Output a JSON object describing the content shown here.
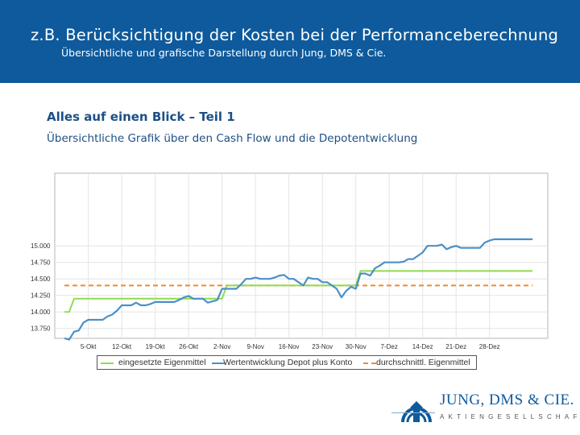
{
  "header": {
    "title": "z.B. Berücksichtigung der Kosten bei der Performanceberechnung",
    "subtitle": "Übersichtliche und grafische Darstellung durch Jung, DMS & Cie."
  },
  "section": {
    "title": "Alles auf einen Blick – Teil 1",
    "subtitle": "Übersichtliche Grafik über den Cash Flow und die Depotentwicklung"
  },
  "colors": {
    "header_bg": "#0e5a9c",
    "green": "#8fdc4f",
    "blue": "#4a90c8",
    "orange": "#f08a2c"
  },
  "chart_data": {
    "type": "line",
    "title": "",
    "xlabel": "",
    "ylabel": "",
    "ylim": [
      13.6,
      16.1
    ],
    "yticks": [
      13.75,
      14.0,
      14.25,
      14.5,
      14.75,
      15.0
    ],
    "ytick_labels": [
      "13.750",
      "14.000",
      "14.250",
      "14.500",
      "14.750",
      "15.000"
    ],
    "x_range": [
      0,
      99
    ],
    "xtick_positions": [
      5,
      12,
      19,
      26,
      33,
      40,
      47,
      54,
      61,
      68,
      75,
      82,
      89
    ],
    "xtick_labels": [
      "5-Okt",
      "12-Okt",
      "19-Okt",
      "26-Okt",
      "2-Nov",
      "9-Nov",
      "16-Nov",
      "23-Nov",
      "30-Nov",
      "7-Dez",
      "14-Dez",
      "21-Dez",
      "28-Dez"
    ],
    "grid": true,
    "legend_position": "bottom",
    "series": [
      {
        "name": "eingesetzte Eigenmittel",
        "color": "#8fdc4f",
        "x": [
          0,
          1,
          2,
          33,
          34,
          61,
          62,
          98
        ],
        "values": [
          14.0,
          14.0,
          14.2,
          14.2,
          14.4,
          14.4,
          14.62,
          14.62
        ]
      },
      {
        "name": "Wertentwicklung Depot plus Konto",
        "color": "#4a90c8",
        "x": [
          0,
          1,
          2,
          3,
          4,
          5,
          6,
          7,
          8,
          9,
          10,
          11,
          12,
          13,
          14,
          15,
          16,
          17,
          18,
          19,
          20,
          21,
          22,
          23,
          24,
          25,
          26,
          27,
          28,
          29,
          30,
          31,
          32,
          33,
          34,
          35,
          36,
          37,
          38,
          39,
          40,
          41,
          42,
          43,
          44,
          45,
          46,
          47,
          48,
          49,
          50,
          51,
          52,
          53,
          54,
          55,
          56,
          57,
          58,
          59,
          60,
          61,
          62,
          63,
          64,
          65,
          66,
          67,
          68,
          69,
          70,
          71,
          72,
          73,
          74,
          75,
          76,
          77,
          78,
          79,
          80,
          81,
          82,
          83,
          84,
          85,
          86,
          87,
          88,
          89,
          90,
          91,
          92,
          93,
          94,
          95,
          96,
          97,
          98
        ],
        "values": [
          13.6,
          13.58,
          13.7,
          13.72,
          13.84,
          13.88,
          13.88,
          13.88,
          13.88,
          13.93,
          13.96,
          14.02,
          14.1,
          14.1,
          14.1,
          14.14,
          14.1,
          14.1,
          14.12,
          14.15,
          14.15,
          14.15,
          14.15,
          14.15,
          14.18,
          14.22,
          14.24,
          14.2,
          14.2,
          14.2,
          14.14,
          14.16,
          14.18,
          14.35,
          14.35,
          14.35,
          14.35,
          14.42,
          14.5,
          14.5,
          14.52,
          14.5,
          14.5,
          14.5,
          14.52,
          14.55,
          14.56,
          14.5,
          14.5,
          14.45,
          14.4,
          14.52,
          14.5,
          14.5,
          14.45,
          14.45,
          14.4,
          14.35,
          14.22,
          14.32,
          14.38,
          14.35,
          14.58,
          14.58,
          14.55,
          14.66,
          14.7,
          14.75,
          14.75,
          14.75,
          14.75,
          14.76,
          14.8,
          14.8,
          14.85,
          14.9,
          15.0,
          15.0,
          15.0,
          15.02,
          14.95,
          14.98,
          15.0,
          14.97,
          14.97,
          14.97,
          14.97,
          14.97,
          15.05,
          15.08,
          15.1,
          15.1,
          15.1,
          15.1,
          15.1,
          15.1,
          15.1,
          15.1,
          15.1
        ]
      },
      {
        "name": "durchschnittl. Eigenmittel",
        "color": "#f08a2c",
        "dashed": true,
        "x": [
          0,
          98
        ],
        "values": [
          14.4,
          14.4
        ]
      }
    ]
  },
  "logo": {
    "name": "JUNG, DMS & CIE.",
    "tagline": "AKTIENGESELLSCHAFT",
    "icon": "jung-dms-logo-icon"
  }
}
